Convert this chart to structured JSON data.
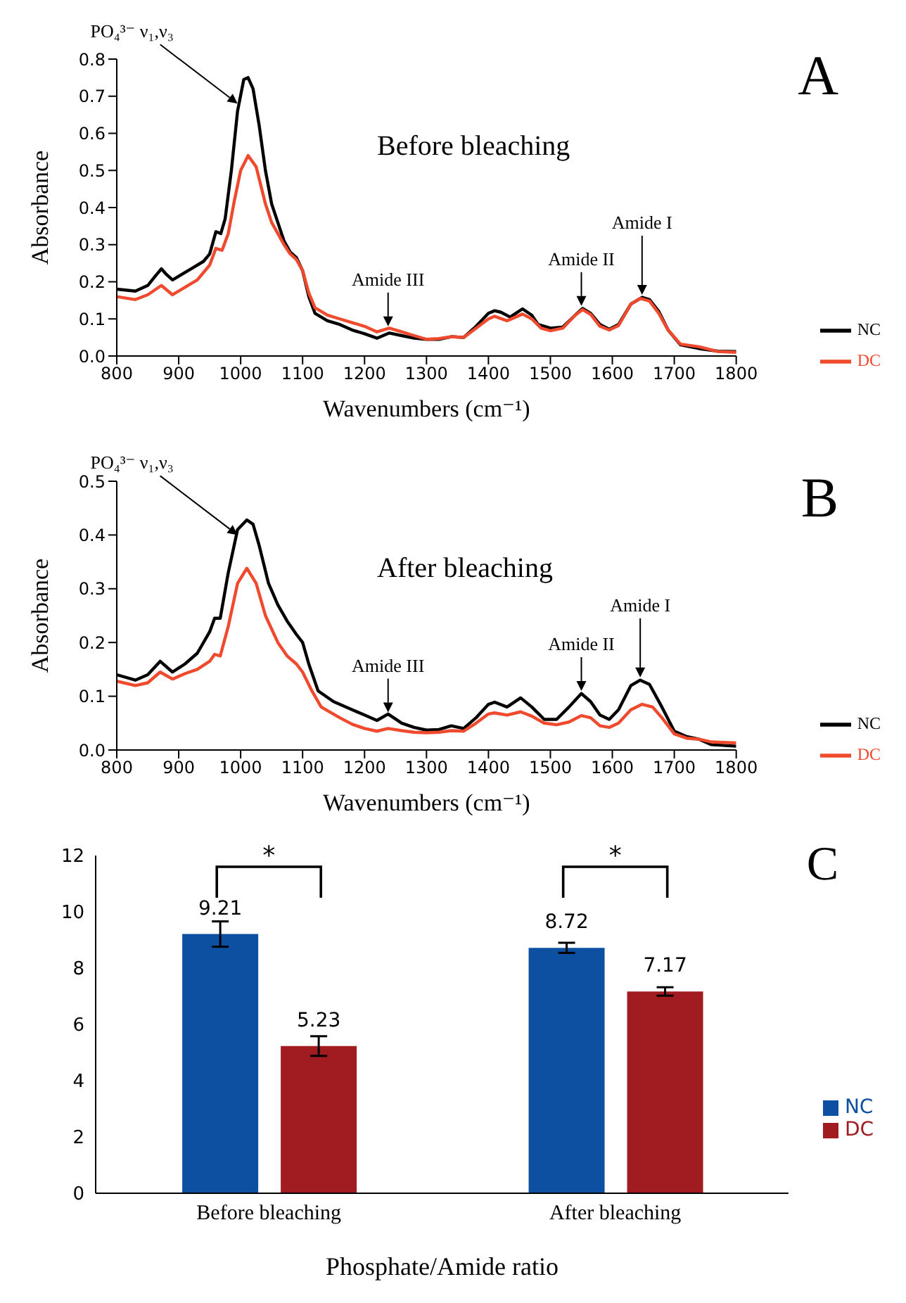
{
  "chart_data": [
    {
      "type": "line",
      "xlabel": "Wavenumbers (cm⁻¹)",
      "ylabel": "Absorbance",
      "xlim": [
        800,
        1800
      ],
      "ylim": [
        0,
        0.8
      ],
      "xticks": [
        800,
        900,
        1000,
        1100,
        1200,
        1300,
        1400,
        1500,
        1600,
        1700,
        1800
      ],
      "yticks": [
        {
          "value": 0,
          "label": "0.0"
        },
        0.1,
        0.2,
        0.3,
        0.4,
        0.5,
        0.6,
        0.7,
        0.8
      ],
      "legend": "bottom right",
      "line_style": "solid",
      "annotations": [
        "A",
        "Before bleaching",
        {
          "text": "PO₄³⁻ ν₁,ν₃",
          "x": 995,
          "y": 0.68
        },
        {
          "text": "Amide III",
          "x": 1238,
          "y": 0.08
        },
        {
          "text": "Amide II",
          "x": 1550,
          "y": 0.135
        },
        {
          "text": "Amide I",
          "x": 1648,
          "y": 0.165
        }
      ],
      "series": [
        {
          "name": "NC",
          "color": "#000000",
          "x": [
            800,
            830,
            850,
            862,
            872,
            880,
            890,
            900,
            920,
            940,
            950,
            960,
            968,
            975,
            985,
            995,
            1005,
            1012,
            1020,
            1030,
            1040,
            1050,
            1060,
            1070,
            1080,
            1090,
            1100,
            1110,
            1120,
            1140,
            1160,
            1180,
            1200,
            1220,
            1240,
            1260,
            1280,
            1300,
            1320,
            1340,
            1360,
            1380,
            1400,
            1410,
            1420,
            1435,
            1455,
            1470,
            1480,
            1500,
            1520,
            1540,
            1552,
            1565,
            1580,
            1595,
            1610,
            1630,
            1648,
            1660,
            1675,
            1690,
            1710,
            1740,
            1770,
            1800
          ],
          "values": [
            0.18,
            0.175,
            0.19,
            0.215,
            0.235,
            0.22,
            0.205,
            0.215,
            0.235,
            0.255,
            0.275,
            0.335,
            0.33,
            0.37,
            0.5,
            0.66,
            0.745,
            0.75,
            0.72,
            0.62,
            0.5,
            0.41,
            0.36,
            0.31,
            0.28,
            0.265,
            0.23,
            0.16,
            0.115,
            0.095,
            0.085,
            0.07,
            0.06,
            0.048,
            0.062,
            0.055,
            0.048,
            0.045,
            0.045,
            0.052,
            0.05,
            0.08,
            0.115,
            0.122,
            0.118,
            0.105,
            0.127,
            0.11,
            0.085,
            0.075,
            0.078,
            0.11,
            0.128,
            0.115,
            0.085,
            0.072,
            0.085,
            0.14,
            0.158,
            0.152,
            0.12,
            0.07,
            0.03,
            0.02,
            0.013,
            0.012
          ]
        },
        {
          "name": "DC",
          "color": "#f04a2e",
          "x": [
            800,
            830,
            850,
            872,
            890,
            910,
            930,
            950,
            960,
            970,
            980,
            990,
            1000,
            1012,
            1025,
            1040,
            1050,
            1060,
            1070,
            1080,
            1090,
            1100,
            1110,
            1120,
            1140,
            1160,
            1180,
            1200,
            1220,
            1240,
            1260,
            1280,
            1300,
            1320,
            1340,
            1360,
            1380,
            1400,
            1410,
            1430,
            1455,
            1470,
            1485,
            1500,
            1520,
            1540,
            1552,
            1565,
            1580,
            1595,
            1610,
            1630,
            1645,
            1660,
            1675,
            1690,
            1710,
            1740,
            1770,
            1800
          ],
          "values": [
            0.16,
            0.152,
            0.165,
            0.19,
            0.165,
            0.185,
            0.205,
            0.245,
            0.29,
            0.285,
            0.33,
            0.42,
            0.5,
            0.54,
            0.51,
            0.41,
            0.36,
            0.33,
            0.3,
            0.275,
            0.26,
            0.23,
            0.17,
            0.13,
            0.11,
            0.1,
            0.09,
            0.08,
            0.065,
            0.075,
            0.065,
            0.055,
            0.045,
            0.047,
            0.052,
            0.05,
            0.075,
            0.1,
            0.107,
            0.095,
            0.113,
            0.1,
            0.075,
            0.068,
            0.075,
            0.11,
            0.125,
            0.112,
            0.08,
            0.07,
            0.082,
            0.14,
            0.155,
            0.148,
            0.115,
            0.07,
            0.032,
            0.025,
            0.012,
            0.01
          ]
        }
      ]
    },
    {
      "type": "line",
      "xlabel": "Wavenumbers (cm⁻¹)",
      "ylabel": "Absorbance",
      "xlim": [
        800,
        1800
      ],
      "ylim": [
        0,
        0.5
      ],
      "xticks": [
        800,
        900,
        1000,
        1100,
        1200,
        1300,
        1400,
        1500,
        1600,
        1700,
        1800
      ],
      "yticks": [
        {
          "value": 0,
          "label": "0.0"
        },
        0.1,
        0.2,
        0.3,
        0.4,
        0.5
      ],
      "legend": "bottom right",
      "line_style": "solid",
      "annotations": [
        "B",
        "After bleaching",
        {
          "text": "PO₄³⁻ ν₁,ν₃",
          "x": 995,
          "y": 0.4
        },
        {
          "text": "Amide III",
          "x": 1238,
          "y": 0.07
        },
        {
          "text": "Amide II",
          "x": 1550,
          "y": 0.11
        },
        {
          "text": "Amide I",
          "x": 1645,
          "y": 0.135
        }
      ],
      "series": [
        {
          "name": "NC",
          "color": "#000000",
          "x": [
            800,
            830,
            850,
            870,
            890,
            910,
            930,
            950,
            958,
            967,
            980,
            995,
            1010,
            1020,
            1030,
            1045,
            1060,
            1075,
            1090,
            1100,
            1110,
            1125,
            1150,
            1180,
            1200,
            1220,
            1238,
            1260,
            1280,
            1300,
            1320,
            1340,
            1360,
            1380,
            1400,
            1410,
            1430,
            1452,
            1470,
            1490,
            1510,
            1530,
            1550,
            1565,
            1580,
            1595,
            1610,
            1630,
            1645,
            1660,
            1680,
            1700,
            1720,
            1740,
            1760,
            1800
          ],
          "values": [
            0.14,
            0.13,
            0.14,
            0.165,
            0.145,
            0.16,
            0.18,
            0.22,
            0.245,
            0.245,
            0.33,
            0.41,
            0.428,
            0.42,
            0.38,
            0.31,
            0.27,
            0.24,
            0.215,
            0.2,
            0.16,
            0.11,
            0.09,
            0.075,
            0.065,
            0.055,
            0.067,
            0.05,
            0.042,
            0.037,
            0.038,
            0.045,
            0.04,
            0.06,
            0.085,
            0.089,
            0.08,
            0.097,
            0.08,
            0.057,
            0.057,
            0.08,
            0.105,
            0.09,
            0.065,
            0.057,
            0.075,
            0.12,
            0.13,
            0.122,
            0.08,
            0.035,
            0.025,
            0.02,
            0.01,
            0.007
          ]
        },
        {
          "name": "DC",
          "color": "#f04a2e",
          "x": [
            800,
            830,
            850,
            870,
            890,
            910,
            930,
            950,
            958,
            967,
            980,
            995,
            1010,
            1025,
            1040,
            1060,
            1075,
            1090,
            1100,
            1115,
            1130,
            1160,
            1180,
            1200,
            1220,
            1238,
            1260,
            1280,
            1300,
            1320,
            1340,
            1360,
            1380,
            1400,
            1410,
            1430,
            1452,
            1470,
            1490,
            1510,
            1530,
            1550,
            1565,
            1580,
            1595,
            1610,
            1630,
            1648,
            1665,
            1680,
            1700,
            1720,
            1740,
            1760,
            1800
          ],
          "values": [
            0.128,
            0.12,
            0.125,
            0.145,
            0.132,
            0.142,
            0.15,
            0.165,
            0.178,
            0.175,
            0.23,
            0.31,
            0.338,
            0.31,
            0.25,
            0.2,
            0.175,
            0.16,
            0.145,
            0.11,
            0.08,
            0.06,
            0.048,
            0.04,
            0.035,
            0.04,
            0.036,
            0.033,
            0.032,
            0.033,
            0.036,
            0.035,
            0.05,
            0.067,
            0.069,
            0.065,
            0.071,
            0.063,
            0.05,
            0.047,
            0.052,
            0.064,
            0.06,
            0.045,
            0.042,
            0.05,
            0.075,
            0.085,
            0.08,
            0.06,
            0.03,
            0.022,
            0.02,
            0.015,
            0.013
          ]
        }
      ]
    },
    {
      "type": "bar",
      "xlabel": "Phosphate/Amide ratio",
      "categories": [
        "Before bleaching",
        "After bleaching"
      ],
      "ylim": [
        0,
        12
      ],
      "yticks": [
        0,
        2,
        4,
        6,
        8,
        10,
        12
      ],
      "legend": "right",
      "data_labels": true,
      "annotations": [
        "C",
        "*",
        "*"
      ],
      "series": [
        {
          "name": "NC",
          "color": "#0d4fa0",
          "values": [
            9.21,
            8.72
          ],
          "errors": [
            0.45,
            0.18
          ]
        },
        {
          "name": "DC",
          "color": "#a01c20",
          "values": [
            5.23,
            7.17
          ],
          "errors": [
            0.35,
            0.15
          ]
        }
      ]
    }
  ]
}
